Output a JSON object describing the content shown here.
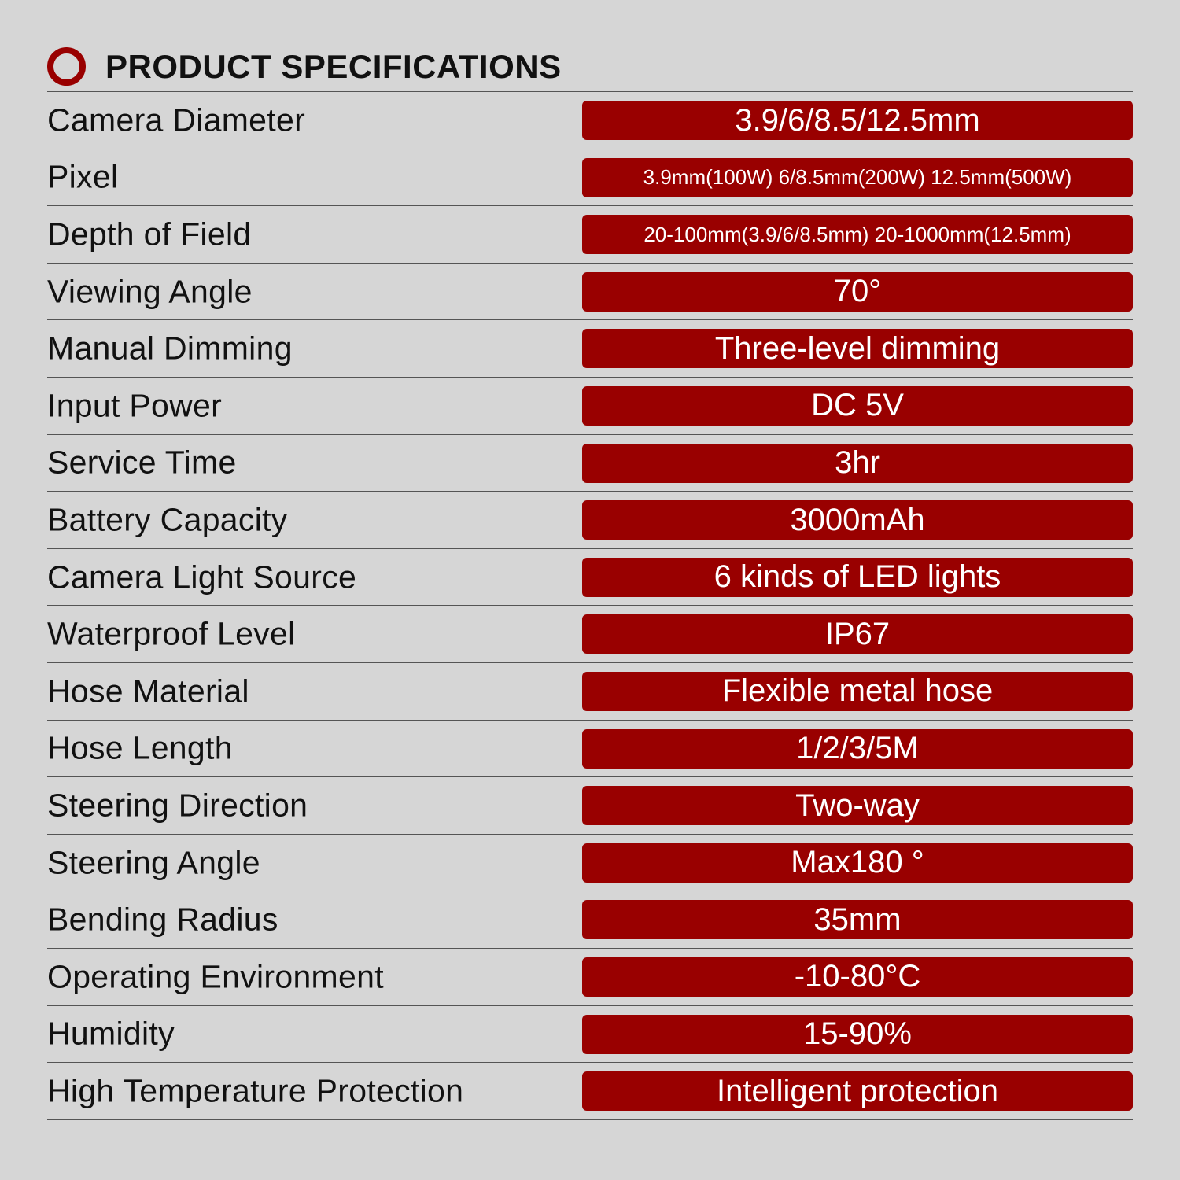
{
  "header": {
    "title": "PRODUCT SPECIFICATIONS",
    "icon": "ring-icon"
  },
  "colors": {
    "accent": "#990000",
    "background": "#d6d6d6",
    "text": "#111111"
  },
  "specs": [
    {
      "label": "Camera Diameter",
      "value": "3.9/6/8.5/12.5mm"
    },
    {
      "label": "Pixel",
      "value": "3.9mm(100W) 6/8.5mm(200W) 12.5mm(500W)"
    },
    {
      "label": "Depth of Field",
      "value": "20-100mm(3.9/6/8.5mm) 20-1000mm(12.5mm)"
    },
    {
      "label": "Viewing Angle",
      "value": "70°"
    },
    {
      "label": "Manual Dimming",
      "value": "Three-level dimming"
    },
    {
      "label": "Input Power",
      "value": "DC 5V"
    },
    {
      "label": "Service Time",
      "value": "3hr"
    },
    {
      "label": "Battery Capacity",
      "value": "3000mAh"
    },
    {
      "label": "Camera Light Source",
      "value": "6 kinds of LED lights"
    },
    {
      "label": "Waterproof Level",
      "value": "IP67"
    },
    {
      "label": "Hose Material",
      "value": "Flexible metal hose"
    },
    {
      "label": "Hose Length",
      "value": "1/2/3/5M"
    },
    {
      "label": "Steering Direction",
      "value": "Two-way"
    },
    {
      "label": "Steering Angle",
      "value": "Max180 °"
    },
    {
      "label": "Bending Radius",
      "value": "35mm"
    },
    {
      "label": "Operating Environment",
      "value": "-10-80°C"
    },
    {
      "label": "Humidity",
      "value": "15-90%"
    },
    {
      "label": "High Temperature Protection",
      "value": "Intelligent protection"
    }
  ]
}
